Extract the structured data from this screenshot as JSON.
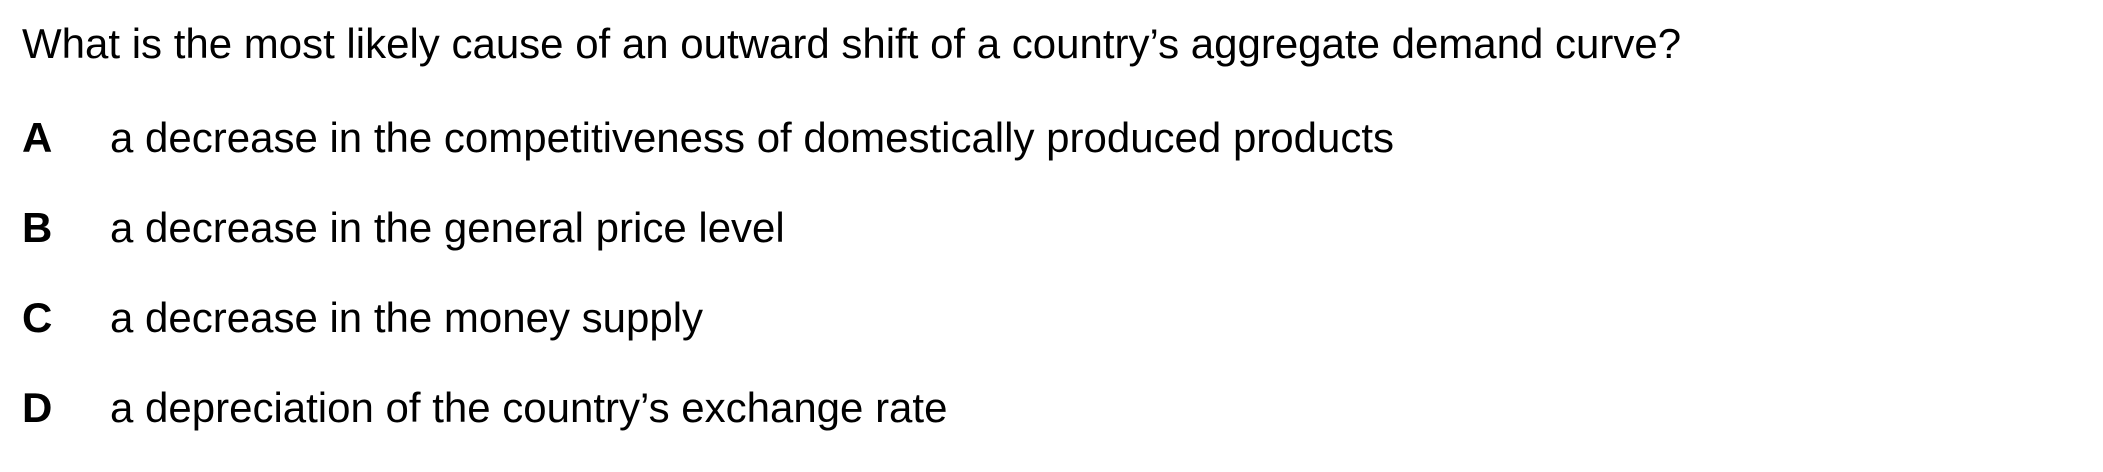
{
  "question": {
    "text": "What is the most likely cause of an outward shift of a country’s aggregate demand curve?"
  },
  "options": [
    {
      "letter": "A",
      "text": "a decrease in the competitiveness of domestically produced products"
    },
    {
      "letter": "B",
      "text": "a decrease in the general price level"
    },
    {
      "letter": "C",
      "text": "a decrease in the money supply"
    },
    {
      "letter": "D",
      "text": "a depreciation of the country’s exchange rate"
    }
  ]
}
